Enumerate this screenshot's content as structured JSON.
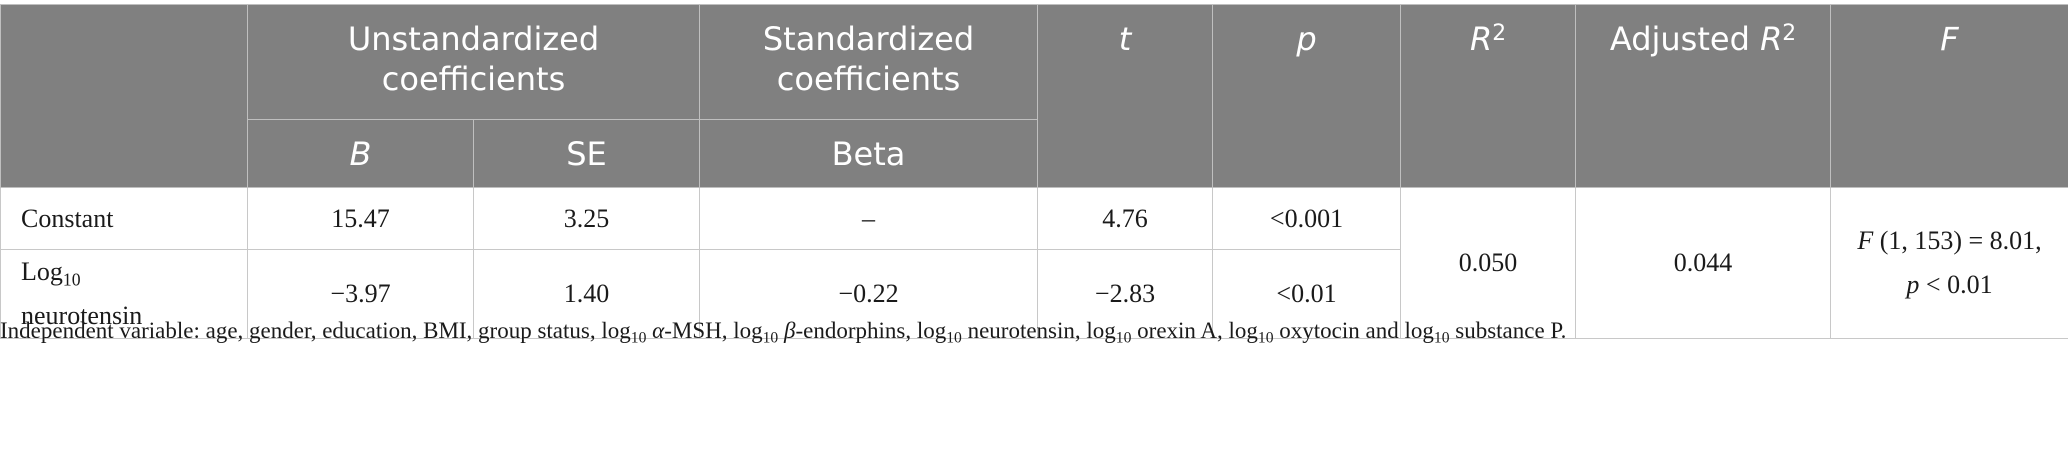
{
  "header": {
    "unstandardized": "Unstandardized coefficients",
    "standardized": "Standardized coefficients",
    "t": "t",
    "p": "p",
    "r2_base": "R",
    "r2_sup": "2",
    "adj_prefix": "Adjusted ",
    "adj_base": "R",
    "adj_sup": "2",
    "f": "F",
    "b": "B",
    "se": "SE",
    "beta": "Beta"
  },
  "rows": [
    {
      "label": "Constant",
      "b": "15.47",
      "se": "3.25",
      "beta": "–",
      "t": "4.76",
      "p": "<0.001"
    },
    {
      "label_prefix": "Log",
      "label_sub": "10",
      "label_rest": "neurotensin",
      "b": "−3.97",
      "se": "1.40",
      "beta": "−0.22",
      "t": "−2.83",
      "p": "<0.01"
    }
  ],
  "model": {
    "r2": "0.050",
    "adjusted_r2": "0.044",
    "f_symbol": "F",
    "f_stat": " (1, 153) = 8.01,",
    "f_p_symbol": "p",
    "f_p": " < 0.01"
  },
  "footnote": {
    "prefix": "Independent variable: age, gender, education, BMI, group status, ",
    "log": "log",
    "sub": "10",
    "alpha": "α",
    "alpha_rest": "-MSH, ",
    "beta": "β",
    "beta_rest": "-endorphins, ",
    "neurotensin": " neurotensin, ",
    "orexin": " orexin A, ",
    "oxytocin": " oxytocin and ",
    "substance": " substance P."
  }
}
